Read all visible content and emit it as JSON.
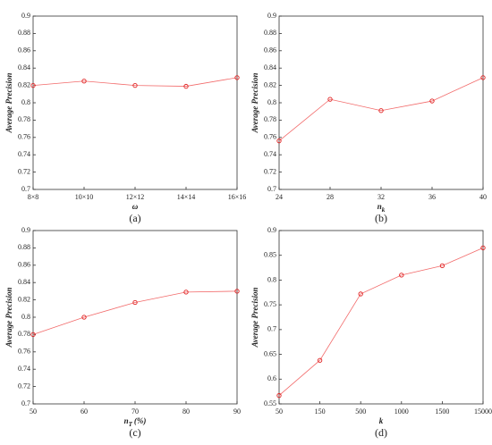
{
  "chart_data": [
    {
      "type": "line",
      "caption": "(a)",
      "x_label": "ω",
      "y_label": "Average Precision",
      "categories": [
        "8×8",
        "10×10",
        "12×12",
        "14×14",
        "16×16"
      ],
      "series": [
        {
          "color": "#f26a6a",
          "values": [
            0.82,
            0.825,
            0.82,
            0.819,
            0.829
          ]
        }
      ],
      "ylim": [
        0.7,
        0.9
      ],
      "yticks": [
        0.7,
        0.72,
        0.74,
        0.76,
        0.78,
        0.8,
        0.82,
        0.84,
        0.86,
        0.88,
        0.9
      ]
    },
    {
      "type": "line",
      "caption": "(b)",
      "x_label": "n",
      "x_label_sub": "k",
      "y_label": "Average Precision",
      "x": [
        24,
        28,
        32,
        36,
        40
      ],
      "xlim": [
        24,
        40
      ],
      "xticks": [
        24,
        28,
        32,
        36,
        40
      ],
      "series": [
        {
          "color": "#f26a6a",
          "values": [
            0.756,
            0.804,
            0.791,
            0.802,
            0.829
          ]
        }
      ],
      "ylim": [
        0.7,
        0.9
      ],
      "yticks": [
        0.7,
        0.72,
        0.74,
        0.76,
        0.78,
        0.8,
        0.82,
        0.84,
        0.86,
        0.88,
        0.9
      ]
    },
    {
      "type": "line",
      "caption": "(c)",
      "x_label": "n",
      "x_label_sub": "T",
      "x_label_suffix": "(%)",
      "y_label": "Average Precision",
      "x": [
        50,
        60,
        70,
        80,
        90
      ],
      "xlim": [
        50,
        90
      ],
      "xticks": [
        50,
        60,
        70,
        80,
        90
      ],
      "series": [
        {
          "color": "#f26a6a",
          "values": [
            0.78,
            0.8,
            0.817,
            0.829,
            0.83
          ]
        }
      ],
      "ylim": [
        0.7,
        0.9
      ],
      "yticks": [
        0.7,
        0.72,
        0.74,
        0.76,
        0.78,
        0.8,
        0.82,
        0.84,
        0.86,
        0.88,
        0.9
      ]
    },
    {
      "type": "line",
      "caption": "(d)",
      "x_label": "k",
      "y_label": "Average Precision",
      "categories": [
        "50",
        "150",
        "500",
        "1000",
        "1500",
        "15000"
      ],
      "series": [
        {
          "color": "#f26a6a",
          "values": [
            0.567,
            0.638,
            0.772,
            0.81,
            0.829,
            0.865
          ]
        }
      ],
      "ylim": [
        0.55,
        0.9
      ],
      "yticks": [
        0.55,
        0.6,
        0.65,
        0.7,
        0.75,
        0.8,
        0.85,
        0.9
      ]
    }
  ]
}
